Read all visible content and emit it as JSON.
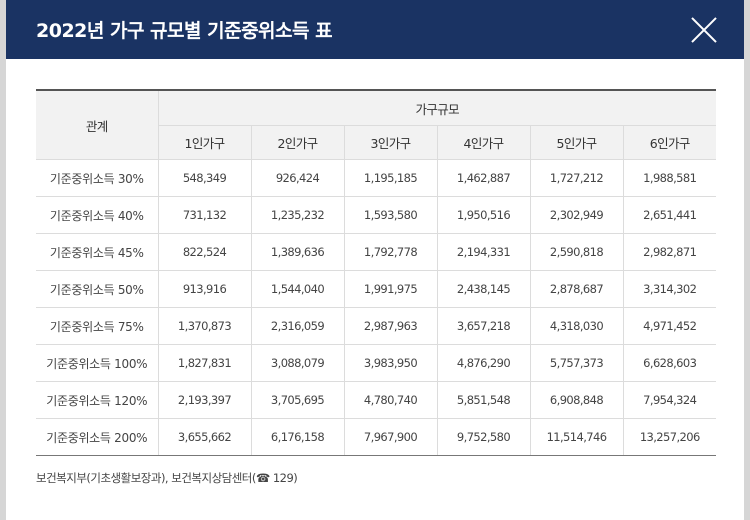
{
  "dialog": {
    "title": "2022년 가구 규모별 기준중위소득 표",
    "close_icon": "close-icon"
  },
  "table": {
    "header": {
      "category": "관계",
      "group": "가구규모",
      "columns": [
        "1인가구",
        "2인가구",
        "3인가구",
        "4인가구",
        "5인가구",
        "6인가구"
      ]
    },
    "rows": [
      {
        "label": "기준중위소득 30%",
        "values": [
          "548,349",
          "926,424",
          "1,195,185",
          "1,462,887",
          "1,727,212",
          "1,988,581"
        ]
      },
      {
        "label": "기준중위소득 40%",
        "values": [
          "731,132",
          "1,235,232",
          "1,593,580",
          "1,950,516",
          "2,302,949",
          "2,651,441"
        ]
      },
      {
        "label": "기준중위소득 45%",
        "values": [
          "822,524",
          "1,389,636",
          "1,792,778",
          "2,194,331",
          "2,590,818",
          "2,982,871"
        ]
      },
      {
        "label": "기준중위소득 50%",
        "values": [
          "913,916",
          "1,544,040",
          "1,991,975",
          "2,438,145",
          "2,878,687",
          "3,314,302"
        ]
      },
      {
        "label": "기준중위소득 75%",
        "values": [
          "1,370,873",
          "2,316,059",
          "2,987,963",
          "3,657,218",
          "4,318,030",
          "4,971,452"
        ]
      },
      {
        "label": "기준중위소득 100%",
        "values": [
          "1,827,831",
          "3,088,079",
          "3,983,950",
          "4,876,290",
          "5,757,373",
          "6,628,603"
        ]
      },
      {
        "label": "기준중위소득 120%",
        "values": [
          "2,193,397",
          "3,705,695",
          "4,780,740",
          "5,851,548",
          "6,908,848",
          "7,954,324"
        ]
      },
      {
        "label": "기준중위소득 200%",
        "values": [
          "3,655,662",
          "6,176,158",
          "7,967,900",
          "9,752,580",
          "11,514,746",
          "13,257,206"
        ]
      }
    ]
  },
  "footnote": {
    "text": "보건복지부(기초생활보장과), 보건복지상담센터(☎ 129)"
  },
  "colors": {
    "header_bg": "#1a3363",
    "table_header_bg": "#f2f2f2"
  }
}
